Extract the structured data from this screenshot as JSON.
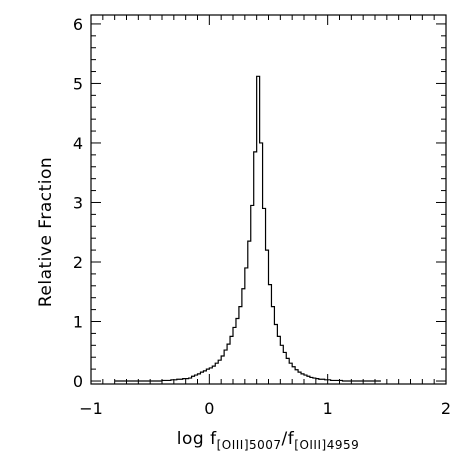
{
  "chart_data": {
    "type": "histogram",
    "title": "",
    "xlabel": {
      "parts": [
        "log  f",
        "[OIII]5007",
        "/f",
        "[OIII]4959"
      ]
    },
    "ylabel": "Relative  Fraction",
    "xlim": [
      -1,
      2
    ],
    "ylim": [
      -0.05,
      6.15
    ],
    "x_ticks": [
      -1,
      0,
      1,
      2
    ],
    "x_tick_labels": [
      "−1",
      "0",
      "1",
      "2"
    ],
    "y_ticks": [
      0,
      1,
      2,
      3,
      4,
      5,
      6
    ],
    "y_tick_labels": [
      "0",
      "1",
      "2",
      "3",
      "4",
      "5",
      "6"
    ],
    "x_minor_step": 0.1,
    "y_minor_step": 0.2,
    "grid": false,
    "bin_width": 0.025,
    "bin_start": -0.8,
    "values": [
      0,
      0,
      0,
      0,
      0,
      0,
      0,
      0,
      0,
      0,
      0,
      0,
      0,
      0,
      0,
      0,
      0.01,
      0.01,
      0.01,
      0.02,
      0.02,
      0.03,
      0.03,
      0.04,
      0.04,
      0.05,
      0.08,
      0.1,
      0.12,
      0.15,
      0.17,
      0.2,
      0.22,
      0.25,
      0.3,
      0.35,
      0.42,
      0.52,
      0.62,
      0.75,
      0.9,
      1.05,
      1.25,
      1.55,
      1.9,
      2.35,
      2.95,
      3.85,
      5.12,
      4.0,
      2.9,
      2.2,
      1.62,
      1.25,
      0.95,
      0.75,
      0.6,
      0.48,
      0.38,
      0.3,
      0.24,
      0.19,
      0.15,
      0.12,
      0.1,
      0.08,
      0.06,
      0.05,
      0.04,
      0.03,
      0.03,
      0.02,
      0.02,
      0.01,
      0.01,
      0.01,
      0.01,
      0,
      0,
      0,
      0,
      0,
      0,
      0,
      0,
      0,
      0,
      0,
      0,
      0
    ]
  }
}
